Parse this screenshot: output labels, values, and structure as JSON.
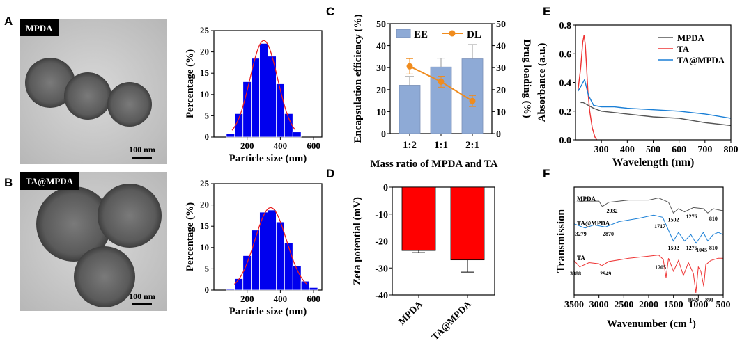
{
  "panels": {
    "A": "A",
    "B": "B",
    "C": "C",
    "D": "D",
    "E": "E",
    "F": "F"
  },
  "tem": {
    "a_label": "MPDA",
    "b_label": "TA@MPDA",
    "a_scale": "100 nm",
    "b_scale": "100 nm"
  },
  "colors": {
    "bar_blue": "#0000ee",
    "fit_red": "#e82020",
    "ee_bar": "#8eaad6",
    "dl_line": "#f08c1e",
    "zeta_red": "#ff0000",
    "mpda_line": "#555555",
    "ta_line": "#ee3333",
    "tampda_line": "#1a7fd6"
  },
  "chart_data": [
    {
      "id": "A-hist",
      "type": "bar",
      "categories": [
        "100",
        "150",
        "200",
        "250",
        "300",
        "350",
        "400",
        "450",
        "500"
      ],
      "values": [
        0.8,
        5.5,
        13,
        18.5,
        22,
        19,
        12.5,
        5.5,
        1.2
      ],
      "xlabel": "Particle size (nm)",
      "ylabel": "Percentage (%)",
      "xticks": [
        "200",
        "400",
        "600"
      ],
      "yticks": [
        "0",
        "5",
        "10",
        "15",
        "20",
        "25"
      ],
      "xlim": [
        0,
        650
      ],
      "ylim": [
        0,
        25
      ]
    },
    {
      "id": "B-hist",
      "type": "bar",
      "categories": [
        "100",
        "150",
        "200",
        "250",
        "300",
        "350",
        "400",
        "450",
        "500",
        "550",
        "600"
      ],
      "values": [
        0.2,
        2.7,
        8.1,
        14.1,
        18.3,
        18.8,
        16,
        11.1,
        5.7,
        2.1,
        0.6
      ],
      "xlabel": "Particle size (nm)",
      "ylabel": "Percentage (%)",
      "xticks": [
        "200",
        "400",
        "600"
      ],
      "yticks": [
        "0",
        "5",
        "10",
        "15",
        "20",
        "25"
      ],
      "xlim": [
        0,
        650
      ],
      "ylim": [
        0,
        25
      ]
    },
    {
      "id": "C",
      "type": "bar",
      "categories": [
        "1:2",
        "1:1",
        "2:1"
      ],
      "series": [
        {
          "name": "EE",
          "values": [
            22,
            30.3,
            34
          ],
          "errors": [
            4,
            4,
            6.5
          ]
        },
        {
          "name": "DL",
          "values": [
            30.6,
            23.6,
            14.8
          ],
          "errors": [
            3.5,
            2.5,
            2.5
          ]
        }
      ],
      "legend": [
        "EE",
        "DL"
      ],
      "title": "",
      "xlabel": "Mass ratio of MPDA and TA",
      "ylabel": "Encapsulation efficiency (%)",
      "y2label": "Drug loading (%)",
      "yticks": [
        "0",
        "10",
        "20",
        "30",
        "40",
        "50"
      ],
      "ylim": [
        0,
        50
      ],
      "y2lim": [
        0,
        50
      ]
    },
    {
      "id": "D",
      "type": "bar",
      "categories": [
        "MPDA",
        "TA@MPDA"
      ],
      "values": [
        -23.5,
        -27
      ],
      "errors": [
        0.8,
        4.5
      ],
      "ylabel": "Zeta potential (mV)",
      "yticks": [
        "0",
        "-10",
        "-20",
        "-30",
        "-40"
      ],
      "ylim": [
        -40,
        0
      ]
    },
    {
      "id": "E",
      "type": "line",
      "series": [
        {
          "name": "MPDA",
          "x": [
            220,
            230,
            250,
            270,
            300,
            350,
            400,
            500,
            600,
            700,
            800
          ],
          "y": [
            0.26,
            0.26,
            0.24,
            0.22,
            0.2,
            0.19,
            0.18,
            0.16,
            0.15,
            0.12,
            0.1
          ]
        },
        {
          "name": "TA",
          "x": [
            210,
            220,
            228,
            233,
            238,
            243,
            248,
            255,
            265,
            275,
            282
          ],
          "y": [
            0.35,
            0.5,
            0.68,
            0.73,
            0.66,
            0.5,
            0.34,
            0.2,
            0.08,
            0.02,
            0.0
          ]
        },
        {
          "name": "TA@MPDA",
          "x": [
            210,
            220,
            235,
            250,
            270,
            300,
            350,
            400,
            500,
            600,
            700,
            800
          ],
          "y": [
            0.34,
            0.37,
            0.42,
            0.31,
            0.24,
            0.23,
            0.23,
            0.22,
            0.21,
            0.2,
            0.18,
            0.15
          ]
        }
      ],
      "legend": [
        "MPDA",
        "TA",
        "TA@MPDA"
      ],
      "xlabel": "Wavelength (nm)",
      "ylabel": "Absorbance (a.u.)",
      "xticks": [
        "300",
        "400",
        "500",
        "600",
        "700",
        "800"
      ],
      "yticks": [
        "0.0",
        "0.2",
        "0.4",
        "0.6",
        "0.8"
      ],
      "xlim": [
        200,
        800
      ],
      "ylim": [
        0,
        0.8
      ]
    },
    {
      "id": "F",
      "type": "line",
      "series": [
        {
          "name": "MPDA",
          "x": [
            3500,
            3300,
            3000,
            2932,
            2800,
            2400,
            2000,
            1800,
            1600,
            1502,
            1400,
            1276,
            1100,
            900,
            810,
            700,
            500
          ],
          "y": [
            0.86,
            0.87,
            0.87,
            0.82,
            0.86,
            0.88,
            0.88,
            0.9,
            0.86,
            0.76,
            0.8,
            0.77,
            0.81,
            0.8,
            0.76,
            0.8,
            0.78
          ]
        },
        {
          "name": "TA@MPDA",
          "x": [
            3500,
            3279,
            3100,
            2870,
            2600,
            2200,
            1900,
            1717,
            1600,
            1502,
            1400,
            1276,
            1150,
            1045,
            900,
            810,
            700,
            600,
            500
          ],
          "y": [
            0.66,
            0.62,
            0.65,
            0.63,
            0.68,
            0.71,
            0.74,
            0.72,
            0.6,
            0.5,
            0.58,
            0.5,
            0.56,
            0.48,
            0.58,
            0.5,
            0.56,
            0.58,
            0.56
          ]
        },
        {
          "name": "TA",
          "x": [
            3500,
            3388,
            3200,
            3000,
            2949,
            2800,
            2400,
            2000,
            1800,
            1705,
            1650,
            1600,
            1500,
            1400,
            1300,
            1200,
            1100,
            1049,
            1000,
            950,
            891,
            850,
            750,
            600,
            500
          ],
          "y": [
            0.32,
            0.26,
            0.3,
            0.29,
            0.27,
            0.31,
            0.34,
            0.36,
            0.37,
            0.33,
            0.16,
            0.34,
            0.22,
            0.32,
            0.18,
            0.3,
            0.2,
            0.02,
            0.26,
            0.22,
            0.08,
            0.28,
            0.32,
            0.34,
            0.34
          ]
        }
      ],
      "legend": [
        "MPDA",
        "TA@MPDA",
        "TA"
      ],
      "xlabel": "Wavenumber (cm⁻¹)",
      "ylabel": "Transmission",
      "xticks": [
        "3500",
        "3000",
        "2500",
        "2000",
        "1500",
        "1000",
        "500"
      ],
      "xlim": [
        3500,
        500
      ]
    }
  ],
  "ftir_labels": {
    "mpda": [
      "2932",
      "1502",
      "1276",
      "810"
    ],
    "tampda": [
      "3279",
      "2870",
      "1717",
      "1502",
      "1276",
      "1045",
      "810"
    ],
    "ta": [
      "3388",
      "2949",
      "1705",
      "1049",
      "891"
    ]
  },
  "xlabel_F": {
    "main": "Wavenumber (cm",
    "sup": "-1",
    "end": ")"
  }
}
